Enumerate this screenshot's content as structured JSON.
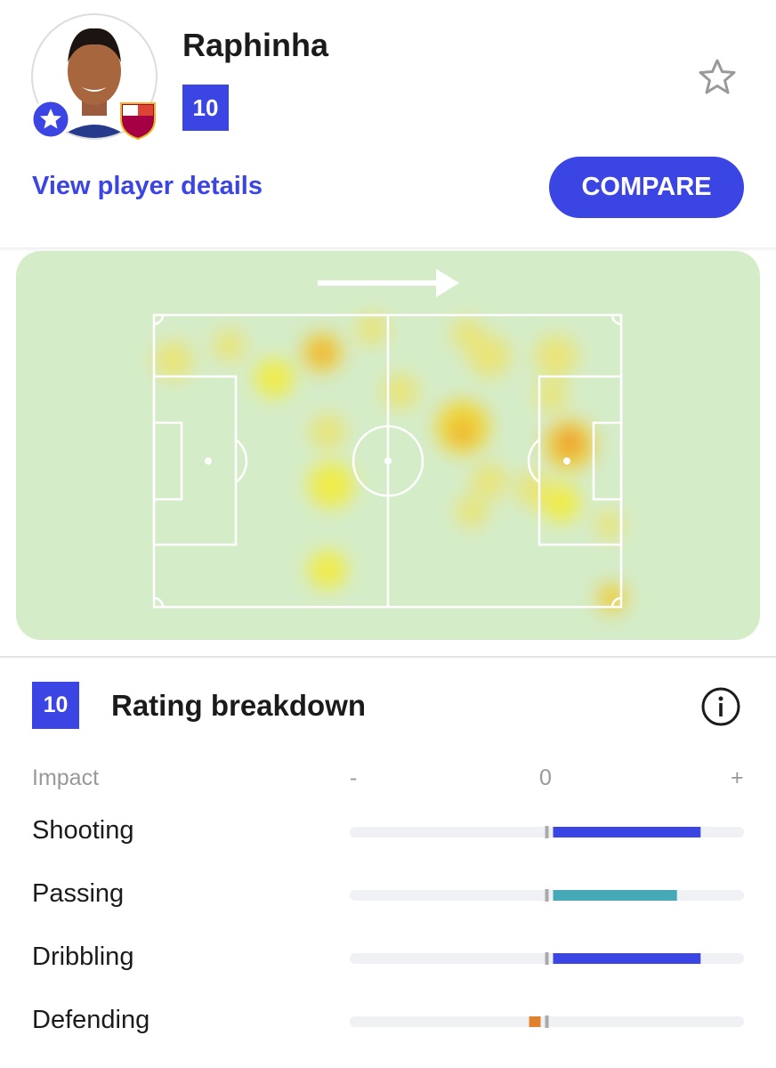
{
  "player": {
    "name": "Raphinha",
    "rating": "10",
    "details_link": "View player details",
    "compare_button": "COMPARE"
  },
  "rating_breakdown": {
    "rating": "10",
    "title": "Rating breakdown",
    "header": "Impact",
    "minus_label": "-",
    "zero_label": "0",
    "plus_label": "+",
    "xlim": [
      -1,
      1
    ],
    "rows": [
      {
        "name": "Shooting",
        "value": 0.78,
        "color": "#3b45e3"
      },
      {
        "name": "Passing",
        "value": 0.66,
        "color": "#45a9b7"
      },
      {
        "name": "Dribbling",
        "value": 0.78,
        "color": "#3b45e3"
      },
      {
        "name": "Defending",
        "value": -0.09,
        "color": "#e0812e"
      }
    ]
  }
}
